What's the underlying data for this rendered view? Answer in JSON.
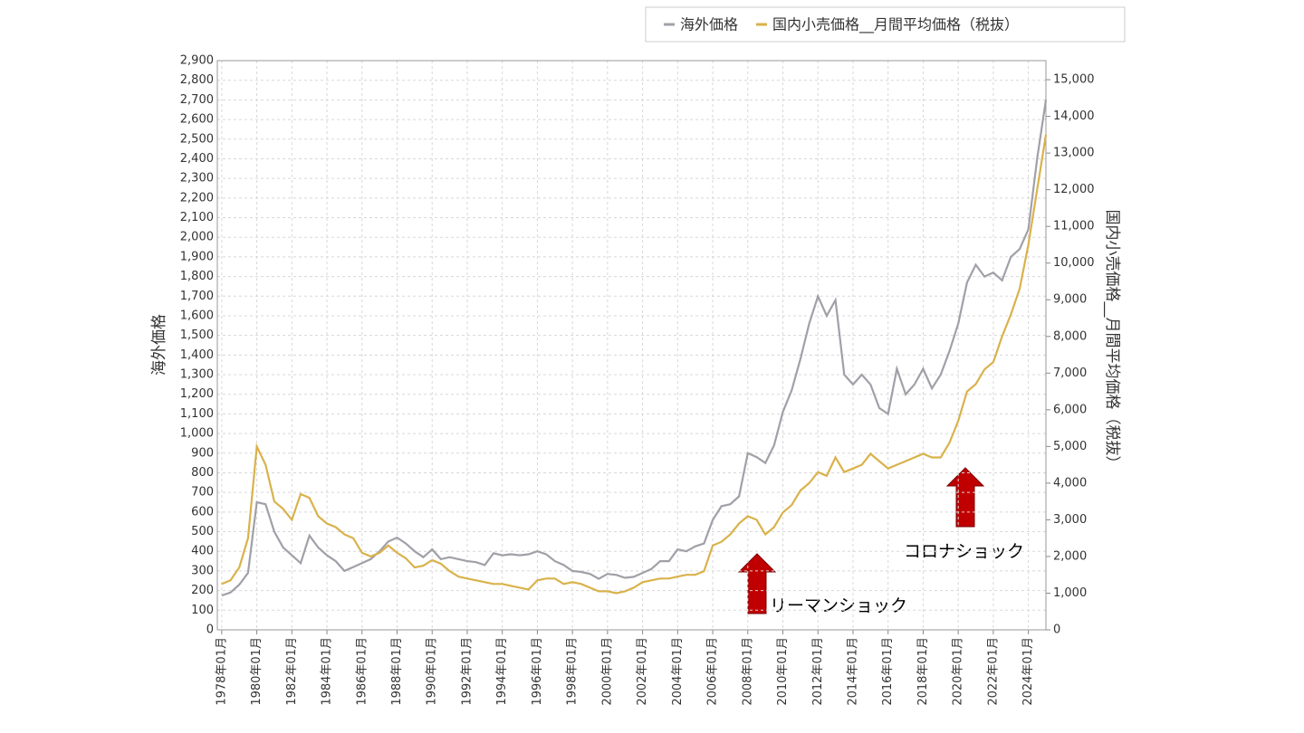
{
  "chart_data": {
    "type": "line",
    "y_label": "海外価格",
    "y2_label": "国内小売価格__月間平均価格（税抜）",
    "annotations": [
      "リーマンショック",
      "コロナショック"
    ],
    "x": [
      1978.0,
      1978.5,
      1979.0,
      1979.5,
      1980.0,
      1980.5,
      1981.0,
      1981.5,
      1982.0,
      1982.5,
      1983.0,
      1983.5,
      1984.0,
      1984.5,
      1985.0,
      1985.5,
      1986.0,
      1986.5,
      1987.0,
      1987.5,
      1988.0,
      1988.5,
      1989.0,
      1989.5,
      1990.0,
      1990.5,
      1991.0,
      1991.5,
      1992.0,
      1992.5,
      1993.0,
      1993.5,
      1994.0,
      1994.5,
      1995.0,
      1995.5,
      1996.0,
      1996.5,
      1997.0,
      1997.5,
      1998.0,
      1998.5,
      1999.0,
      1999.5,
      2000.0,
      2000.5,
      2001.0,
      2001.5,
      2002.0,
      2002.5,
      2003.0,
      2003.5,
      2004.0,
      2004.5,
      2005.0,
      2005.5,
      2006.0,
      2006.5,
      2007.0,
      2007.5,
      2008.0,
      2008.5,
      2009.0,
      2009.5,
      2010.0,
      2010.5,
      2011.0,
      2011.5,
      2012.0,
      2012.5,
      2013.0,
      2013.5,
      2014.0,
      2014.5,
      2015.0,
      2015.5,
      2016.0,
      2016.5,
      2017.0,
      2017.5,
      2018.0,
      2018.5,
      2019.0,
      2019.5,
      2020.0,
      2020.5,
      2021.0,
      2021.5,
      2022.0,
      2022.5,
      2023.0,
      2023.5,
      2024.0,
      2024.5,
      2025.0
    ],
    "series": [
      {
        "name": "海外価格",
        "color": "#a0a0a8",
        "values": [
          175,
          190,
          230,
          290,
          650,
          640,
          500,
          420,
          380,
          340,
          480,
          420,
          380,
          350,
          300,
          320,
          340,
          360,
          400,
          450,
          470,
          440,
          400,
          370,
          410,
          360,
          370,
          360,
          350,
          345,
          330,
          390,
          380,
          385,
          380,
          385,
          400,
          385,
          350,
          330,
          300,
          295,
          285,
          260,
          285,
          280,
          265,
          270,
          290,
          310,
          350,
          350,
          410,
          400,
          425,
          440,
          560,
          630,
          640,
          680,
          900,
          880,
          850,
          940,
          1110,
          1220,
          1380,
          1560,
          1700,
          1600,
          1680,
          1300,
          1250,
          1300,
          1250,
          1130,
          1100,
          1330,
          1200,
          1250,
          1330,
          1230,
          1300,
          1420,
          1560,
          1770,
          1860,
          1800,
          1820,
          1780,
          1900,
          1940,
          2040,
          2400,
          2700
        ]
      },
      {
        "name": "国内小売価格__月間平均価格（税抜）",
        "color": "#d9b24c",
        "axis": "y2",
        "values": [
          1250,
          1350,
          1700,
          2500,
          5000,
          4500,
          3500,
          3300,
          3000,
          3700,
          3600,
          3100,
          2900,
          2800,
          2600,
          2500,
          2100,
          2000,
          2100,
          2300,
          2100,
          1950,
          1700,
          1750,
          1900,
          1800,
          1600,
          1450,
          1400,
          1350,
          1300,
          1250,
          1250,
          1200,
          1150,
          1100,
          1350,
          1400,
          1400,
          1250,
          1300,
          1250,
          1150,
          1050,
          1050,
          1000,
          1050,
          1150,
          1300,
          1350,
          1400,
          1400,
          1450,
          1500,
          1500,
          1600,
          2300,
          2400,
          2600,
          2900,
          3100,
          3000,
          2600,
          2800,
          3200,
          3400,
          3800,
          4000,
          4300,
          4200,
          4700,
          4300,
          4400,
          4500,
          4800,
          4600,
          4400,
          4500,
          4600,
          4700,
          4800,
          4700,
          4700,
          5100,
          5700,
          6500,
          6700,
          7100,
          7300,
          8000,
          8600,
          9300,
          10500,
          12000,
          13500
        ]
      }
    ],
    "xlim": [
      1977.75,
      2025.0
    ],
    "xticks": [
      {
        "value": 1978,
        "label": "1978年01月"
      },
      {
        "value": 1980,
        "label": "1980年01月"
      },
      {
        "value": 1982,
        "label": "1982年01月"
      },
      {
        "value": 1984,
        "label": "1984年01月"
      },
      {
        "value": 1986,
        "label": "1986年01月"
      },
      {
        "value": 1988,
        "label": "1988年01月"
      },
      {
        "value": 1990,
        "label": "1990年01月"
      },
      {
        "value": 1992,
        "label": "1992年01月"
      },
      {
        "value": 1994,
        "label": "1994年01月"
      },
      {
        "value": 1996,
        "label": "1996年01月"
      },
      {
        "value": 1998,
        "label": "1998年01月"
      },
      {
        "value": 2000,
        "label": "2000年01月"
      },
      {
        "value": 2002,
        "label": "2002年01月"
      },
      {
        "value": 2004,
        "label": "2004年01月"
      },
      {
        "value": 2006,
        "label": "2006年01月"
      },
      {
        "value": 2008,
        "label": "2008年01月"
      },
      {
        "value": 2010,
        "label": "2010年01月"
      },
      {
        "value": 2012,
        "label": "2012年01月"
      },
      {
        "value": 2014,
        "label": "2014年01月"
      },
      {
        "value": 2016,
        "label": "2016年01月"
      },
      {
        "value": 2018,
        "label": "2018年01月"
      },
      {
        "value": 2020,
        "label": "2020年01月"
      },
      {
        "value": 2022,
        "label": "2022年01月"
      },
      {
        "value": 2024,
        "label": "2024年01月"
      }
    ],
    "ylim": [
      0,
      2900
    ],
    "yticks": [
      0,
      100,
      200,
      300,
      400,
      500,
      600,
      700,
      800,
      900,
      {
        "value": 1000,
        "label": "1,000"
      },
      {
        "value": 1100,
        "label": "1,100"
      },
      {
        "value": 1200,
        "label": "1,200"
      },
      {
        "value": 1300,
        "label": "1,300"
      },
      {
        "value": 1400,
        "label": "1,400"
      },
      {
        "value": 1500,
        "label": "1,500"
      },
      {
        "value": 1600,
        "label": "1,600"
      },
      {
        "value": 1700,
        "label": "1,700"
      },
      {
        "value": 1800,
        "label": "1,800"
      },
      {
        "value": 1900,
        "label": "1,900"
      },
      {
        "value": 2000,
        "label": "2,000"
      },
      {
        "value": 2100,
        "label": "2,100"
      },
      {
        "value": 2200,
        "label": "2,200"
      },
      {
        "value": 2300,
        "label": "2,300"
      },
      {
        "value": 2400,
        "label": "2,400"
      },
      {
        "value": 2500,
        "label": "2,500"
      },
      {
        "value": 2600,
        "label": "2,600"
      },
      {
        "value": 2700,
        "label": "2,700"
      },
      {
        "value": 2800,
        "label": "2,800"
      },
      {
        "value": 2900,
        "label": "2,900"
      }
    ],
    "y2lim": [
      0,
      15520
    ],
    "y2ticks": [
      0,
      {
        "value": 1000,
        "label": "1,000"
      },
      {
        "value": 2000,
        "label": "2,000"
      },
      {
        "value": 3000,
        "label": "3,000"
      },
      {
        "value": 4000,
        "label": "4,000"
      },
      {
        "value": 5000,
        "label": "5,000"
      },
      {
        "value": 6000,
        "label": "6,000"
      },
      {
        "value": 7000,
        "label": "7,000"
      },
      {
        "value": 8000,
        "label": "8,000"
      },
      {
        "value": 9000,
        "label": "9,000"
      },
      {
        "value": 10000,
        "label": "10,000"
      },
      {
        "value": 11000,
        "label": "11,000"
      },
      {
        "value": 12000,
        "label": "12,000"
      },
      {
        "value": 13000,
        "label": "13,000"
      },
      {
        "value": 14000,
        "label": "14,000"
      },
      {
        "value": 15000,
        "label": "15,000"
      }
    ],
    "grid": true
  }
}
